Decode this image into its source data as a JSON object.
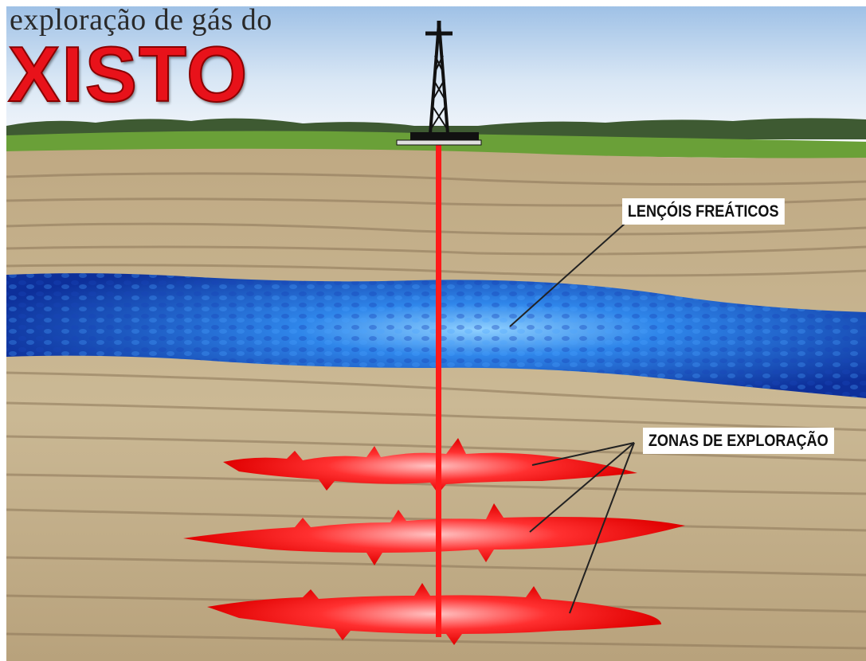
{
  "title": {
    "line1": "exploração de gás do",
    "line2": "XISTO"
  },
  "labels": {
    "aquifer": "LENÇÓIS FREÁTICOS",
    "exploration_zones": "ZONAS DE EXPLORAÇÃO"
  },
  "colors": {
    "title_red": "#e8121a",
    "well_red": "#ff1a1a",
    "water_blue": "#1f5fd6",
    "rock_beige": "#c9b592",
    "grass_green": "#6aa038",
    "sky_blue": "#cfe0f2"
  }
}
